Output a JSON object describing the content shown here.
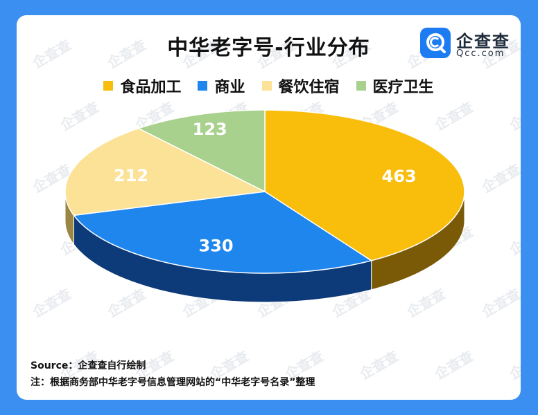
{
  "title": "中华老字号-行业分布",
  "brand": {
    "name": "企查查",
    "domain": "Qcc.com",
    "watermark": "企查查"
  },
  "chart_data": {
    "type": "pie",
    "title": "中华老字号-行业分布",
    "style": "3d",
    "legend_position": "top",
    "categories": [
      "食品加工",
      "商业",
      "餐饮住宿",
      "医疗卫生"
    ],
    "values": [
      463,
      330,
      212,
      123
    ],
    "colors": [
      "#f9bd0c",
      "#1e86ed",
      "#fce297",
      "#a8d18d"
    ],
    "side_colors": [
      "#7a5a06",
      "#0d3a78",
      "#9a8543",
      "#5d7a49"
    ]
  },
  "footer": {
    "source": "Source：企查查自行绘制",
    "note": "注：根据商务部中华老字号信息管理网站的“中华老字号名录”整理"
  }
}
